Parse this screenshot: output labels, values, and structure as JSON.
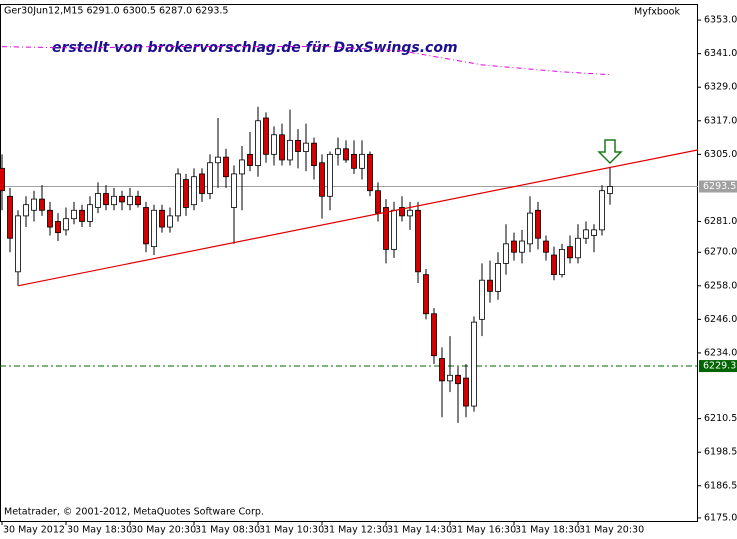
{
  "chart_data": {
    "type": "candlestick",
    "header": "Ger30Jun12,M15  6291.0 6300.5 6287.0 6293.5",
    "brand": "Myfxbook",
    "watermark": "erstellt von brokervorschlag.de für DaxSwings.com",
    "footer": "Metatrader, © 2001-2012, MetaQuotes Software Corp.",
    "categories": [
      "30 May 2012",
      null,
      null,
      null,
      null,
      null,
      null,
      null,
      "30 May 18:30",
      null,
      null,
      null,
      null,
      null,
      null,
      null,
      "30 May 20:30",
      null,
      null,
      null,
      null,
      null,
      null,
      null,
      "31 May 08:30",
      null,
      null,
      null,
      null,
      null,
      null,
      null,
      "31 May 10:30",
      null,
      null,
      null,
      null,
      null,
      null,
      null,
      "31 May 12:30",
      null,
      null,
      null,
      null,
      null,
      null,
      null,
      "31 May 14:30",
      null,
      null,
      null,
      null,
      null,
      null,
      null,
      "31 May 16:30",
      null,
      null,
      null,
      null,
      null,
      null,
      null,
      "31 May 18:30",
      null,
      null,
      null,
      null,
      null,
      null,
      null,
      "31 May 20:30",
      null,
      null,
      null,
      null
    ],
    "open": [
      6300,
      6290,
      6263,
      6283,
      6285,
      6289,
      6285,
      6281,
      6278,
      6282,
      6285,
      6281,
      6286,
      6291,
      6287,
      6290,
      6287,
      6290,
      6286,
      6272,
      6285,
      6279,
      6283,
      6296,
      6287,
      6298,
      6291,
      6302,
      6304,
      6286,
      6298,
      6305,
      6301,
      6318,
      6305,
      6312,
      6303,
      6310,
      6306,
      6309,
      6302,
      6290,
      6305,
      6307,
      6305,
      6300,
      6305,
      6292,
      6286,
      6271,
      6286,
      6283,
      6285,
      6262,
      6248,
      6232,
      6224,
      6226,
      6225,
      6215,
      6246,
      6260,
      6256,
      6266,
      6274,
      6270,
      6273,
      6285,
      6274,
      6269,
      6262,
      6272,
      6268,
      6275,
      6276,
      6278,
      6291
    ],
    "high": [
      6305,
      6293,
      6285,
      6290,
      6292,
      6294,
      6288,
      6284,
      6286,
      6288,
      6287,
      6290,
      6295,
      6294,
      6293,
      6292,
      6293,
      6292,
      6288,
      6287,
      6287,
      6286,
      6300,
      6298,
      6300,
      6300,
      6305,
      6318,
      6307,
      6301,
      6308,
      6313,
      6322,
      6320,
      6315,
      6316,
      6321,
      6314,
      6316,
      6311,
      6305,
      6306,
      6311,
      6310,
      6310,
      6310,
      6306,
      6295,
      6289,
      6288,
      6290,
      6288,
      6288,
      6264,
      6250,
      6236,
      6240,
      6229,
      6230,
      6247,
      6266,
      6267,
      6270,
      6280,
      6277,
      6278,
      6290,
      6288,
      6276,
      6272,
      6273,
      6276,
      6280,
      6281,
      6280,
      6294,
      6300.5
    ],
    "low": [
      6285,
      6270,
      6258,
      6279,
      6281,
      6283,
      6276,
      6274,
      6276,
      6280,
      6279,
      6279,
      6284,
      6285,
      6285,
      6285,
      6285,
      6286,
      6270,
      6269,
      6277,
      6277,
      6281,
      6283,
      6285,
      6288,
      6289,
      6293,
      6293,
      6273,
      6285,
      6299,
      6297,
      6302,
      6301,
      6301,
      6301,
      6300,
      6299,
      6296,
      6282,
      6285,
      6301,
      6302,
      6298,
      6296,
      6290,
      6281,
      6266,
      6268,
      6281,
      6278,
      6259,
      6246,
      6230,
      6211,
      6220,
      6209,
      6211,
      6213,
      6240,
      6252,
      6253,
      6262,
      6267,
      6266,
      6270,
      6271,
      6267,
      6260,
      6261,
      6266,
      6266,
      6273,
      6270,
      6276,
      6287
    ],
    "close": [
      6292,
      6275,
      6283,
      6287,
      6289,
      6285,
      6279,
      6277,
      6282,
      6285,
      6281,
      6287,
      6291,
      6287,
      6290,
      6288,
      6290,
      6287,
      6273,
      6285,
      6279,
      6283,
      6298,
      6286,
      6297,
      6291,
      6302,
      6304,
      6297,
      6298,
      6303,
      6301,
      6317,
      6305,
      6312,
      6303,
      6310,
      6306,
      6309,
      6301,
      6290,
      6305,
      6307,
      6303,
      6300,
      6305,
      6292,
      6284,
      6271,
      6285,
      6283,
      6285,
      6263,
      6248,
      6233,
      6224,
      6226,
      6223,
      6215,
      6245,
      6260,
      6256,
      6266,
      6273,
      6270,
      6274,
      6284,
      6275,
      6270,
      6262,
      6271,
      6268,
      6275,
      6278,
      6278,
      6292,
      6293.5
    ],
    "up_color": "#ffffff",
    "down_color": "#d40000",
    "trendline": {
      "x": [
        2,
        87
      ],
      "values": [
        6258,
        6306.6
      ],
      "color": "#e00000"
    },
    "moving_average": {
      "x": [
        0,
        10,
        20,
        30,
        40,
        50,
        53,
        60,
        70,
        76
      ],
      "values": [
        6343.5,
        6343,
        6343.6,
        6343.5,
        6343.6,
        6342,
        6340.5,
        6337,
        6334.5,
        6333.5
      ],
      "color": "#e000e0"
    },
    "hlines": [
      {
        "value": 6293.5,
        "label": "6293.5",
        "color": "#a0a0a0"
      },
      {
        "value": 6229.3,
        "label": "6229.3",
        "color": "#006400"
      }
    ],
    "ylim": [
      6173.9,
      6358.4
    ],
    "yticks": [
      {
        "value": 6353,
        "label": "6353.0"
      },
      {
        "value": 6341,
        "label": "6341.0"
      },
      {
        "value": 6329,
        "label": "6329.0"
      },
      {
        "value": 6317,
        "label": "6317.0"
      },
      {
        "value": 6305,
        "label": "6305.0"
      },
      {
        "value": 6281,
        "label": "6281.0"
      },
      {
        "value": 6270,
        "label": "6270.0"
      },
      {
        "value": 6258,
        "label": "6258.0"
      },
      {
        "value": 6246,
        "label": "6246.0"
      },
      {
        "value": 6234,
        "label": "6234.0"
      },
      {
        "value": 6210.5,
        "label": "6210.5"
      },
      {
        "value": 6198.5,
        "label": "6198.5"
      },
      {
        "value": 6186.5,
        "label": "6186.5"
      },
      {
        "value": 6175,
        "label": "6175.0"
      }
    ]
  }
}
